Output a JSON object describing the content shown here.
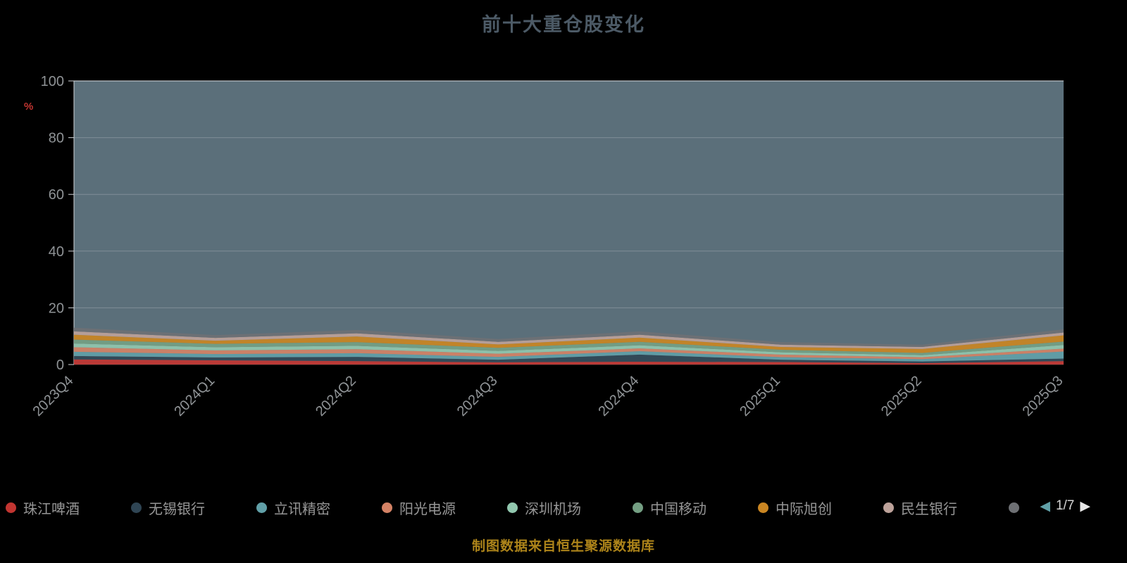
{
  "title": "前十大重仓股变化",
  "caption": "制图数据来自恒生聚源数据库",
  "y_axis": {
    "unit_label": "%",
    "ticks": [
      0,
      20,
      40,
      60,
      80,
      100
    ]
  },
  "legend": {
    "pager": {
      "prev_icon": "◀",
      "current": "1/7",
      "next_icon": "▶"
    }
  },
  "colors": {
    "background": "#000000",
    "plot_background": "#5b6f7a",
    "title": "#4c5a66",
    "axis_label": "#8f9396",
    "axis_line": "#cfd4d8",
    "unit_label": "#c23531",
    "caption": "#ad841a"
  },
  "chart_data": {
    "type": "area",
    "stacked": true,
    "title": "前十大重仓股变化",
    "xlabel": "",
    "ylabel": "%",
    "ylim": [
      0,
      100
    ],
    "grid": "horizontal",
    "legend_position": "bottom",
    "plot_bg": "#5b6f7a",
    "x": [
      "2023Q4",
      "2024Q1",
      "2024Q2",
      "2024Q3",
      "2024Q4",
      "2025Q1",
      "2025Q2",
      "2025Q3"
    ],
    "series": [
      {
        "name": "珠江啤酒",
        "color": "#c23531",
        "values": [
          1.8,
          1.5,
          1.2,
          0.8,
          1.0,
          0.9,
          0.5,
          1.2
        ]
      },
      {
        "name": "无锡银行",
        "color": "#2f4554",
        "values": [
          1.2,
          1.0,
          1.5,
          0.9,
          2.5,
          0.8,
          0.6,
          0.9
        ]
      },
      {
        "name": "立讯精密",
        "color": "#61a0a8",
        "values": [
          1.5,
          1.2,
          1.3,
          1.0,
          1.2,
          0.9,
          0.8,
          2.5
        ]
      },
      {
        "name": "阳光电源",
        "color": "#d48265",
        "values": [
          1.6,
          1.3,
          1.4,
          1.1,
          1.0,
          0.9,
          0.7,
          1.0
        ]
      },
      {
        "name": "深圳机场",
        "color": "#91c7ae",
        "values": [
          1.3,
          1.1,
          1.2,
          1.0,
          1.1,
          0.8,
          0.7,
          1.3
        ]
      },
      {
        "name": "中国移动",
        "color": "#749f83",
        "values": [
          1.4,
          1.2,
          1.3,
          1.1,
          1.2,
          0.9,
          0.8,
          1.2
        ]
      },
      {
        "name": "中际旭创",
        "color": "#ca8622",
        "values": [
          1.7,
          1.1,
          2.0,
          1.2,
          1.5,
          1.0,
          1.4,
          2.2
        ]
      },
      {
        "name": "民生银行",
        "color": "#bda29a",
        "values": [
          1.2,
          1.0,
          1.1,
          0.9,
          1.0,
          0.8,
          0.7,
          1.0
        ]
      },
      {
        "name": "",
        "color": "#6e7074",
        "values": [
          1.3,
          1.0,
          1.2,
          1.0,
          1.2,
          0.9,
          0.8,
          1.1
        ]
      }
    ]
  }
}
